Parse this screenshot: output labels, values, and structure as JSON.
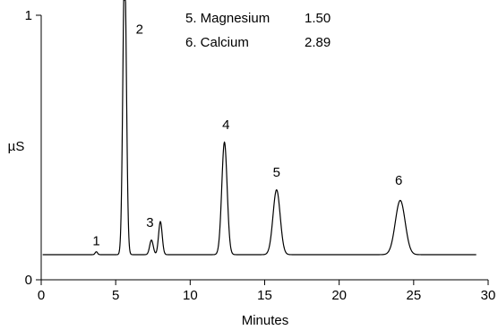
{
  "chart_data": {
    "type": "line",
    "xlabel": "Minutes",
    "ylabel": "µS",
    "xlim": [
      0,
      30
    ],
    "ylim": [
      0,
      1
    ],
    "x_ticks": [
      0,
      5,
      10,
      15,
      20,
      25,
      30
    ],
    "y_ticks": [
      0,
      1
    ],
    "grid": false,
    "baseline": 0.095,
    "series": [
      {
        "peaks": [
          {
            "label": "1",
            "time": 3.7,
            "height": 0.106
          },
          {
            "label": "2",
            "time": 5.6,
            "height": 1.2
          },
          {
            "label": "3",
            "time": 7.4,
            "height": 0.15
          },
          {
            "label": "3",
            "time": 8.0,
            "height": 0.22
          },
          {
            "label": "4",
            "time": 12.3,
            "height": 0.52
          },
          {
            "label": "5",
            "time": 15.8,
            "height": 0.34
          },
          {
            "label": "6",
            "time": 24.1,
            "height": 0.3
          }
        ]
      }
    ],
    "peak_labels": [
      {
        "text": "1",
        "time": 3.7,
        "height": 0.13
      },
      {
        "text": "2",
        "time": 6.6,
        "height": 0.93
      },
      {
        "text": "3",
        "time": 7.3,
        "height": 0.2
      },
      {
        "text": "4",
        "time": 12.4,
        "height": 0.57
      },
      {
        "text": "5",
        "time": 15.8,
        "height": 0.39
      },
      {
        "text": "6",
        "time": 24.0,
        "height": 0.36
      }
    ],
    "legend": [
      {
        "name": "5. Magnesium",
        "value": "1.50"
      },
      {
        "name": "6. Calcium",
        "value": "2.89"
      }
    ]
  }
}
